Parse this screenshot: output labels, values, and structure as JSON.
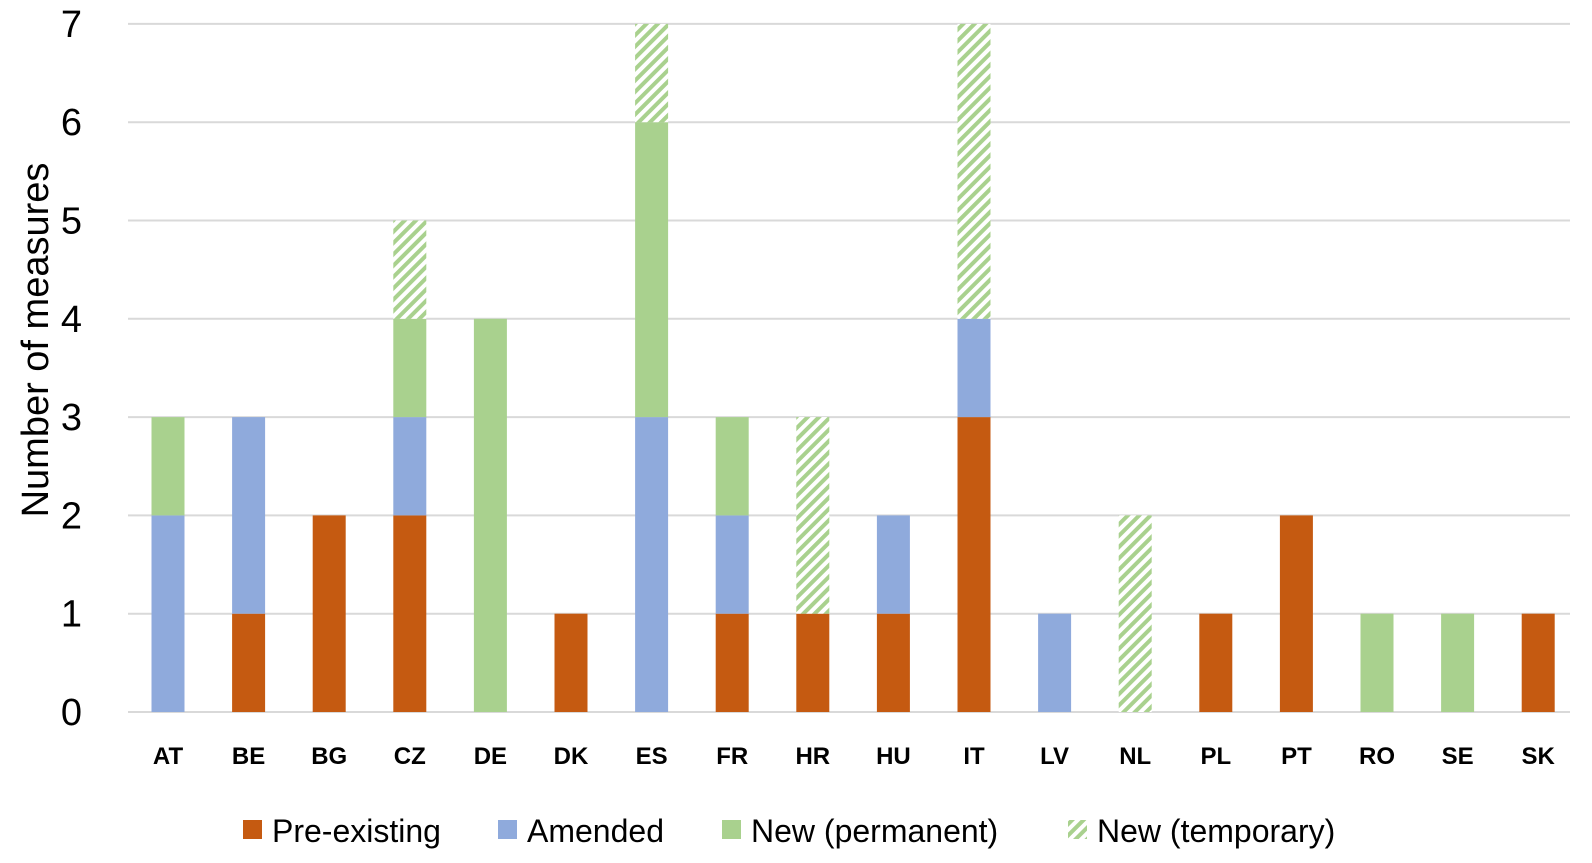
{
  "chart_data": {
    "type": "bar",
    "stacked": true,
    "title": "",
    "xlabel": "",
    "ylabel": "Number of measures",
    "ylim": [
      0,
      7
    ],
    "yticks": [
      0,
      1,
      2,
      3,
      4,
      5,
      6,
      7
    ],
    "grid": true,
    "legend_position": "bottom",
    "categories": [
      "AT",
      "BE",
      "BG",
      "CZ",
      "DE",
      "DK",
      "ES",
      "FR",
      "HR",
      "HU",
      "IT",
      "LV",
      "NL",
      "PL",
      "PT",
      "RO",
      "SE",
      "SK"
    ],
    "series": [
      {
        "name": "Pre-existing",
        "color": "#c55a11",
        "pattern": "solid",
        "values": [
          0,
          1,
          2,
          2,
          0,
          1,
          0,
          1,
          1,
          1,
          3,
          0,
          0,
          1,
          2,
          0,
          0,
          1
        ]
      },
      {
        "name": "Amended",
        "color": "#8faadc",
        "pattern": "solid",
        "values": [
          2,
          2,
          0,
          1,
          0,
          0,
          3,
          1,
          0,
          1,
          1,
          1,
          0,
          0,
          0,
          0,
          0,
          0
        ]
      },
      {
        "name": "New (permanent)",
        "color": "#a9d18e",
        "pattern": "solid",
        "values": [
          1,
          0,
          0,
          1,
          4,
          0,
          3,
          1,
          0,
          0,
          0,
          0,
          0,
          0,
          0,
          1,
          1,
          0
        ]
      },
      {
        "name": "New (temporary)",
        "color": "#a9d18e",
        "pattern": "hatched",
        "values": [
          0,
          0,
          0,
          1,
          0,
          0,
          1,
          0,
          2,
          0,
          3,
          0,
          2,
          0,
          0,
          0,
          0,
          0
        ]
      }
    ]
  }
}
